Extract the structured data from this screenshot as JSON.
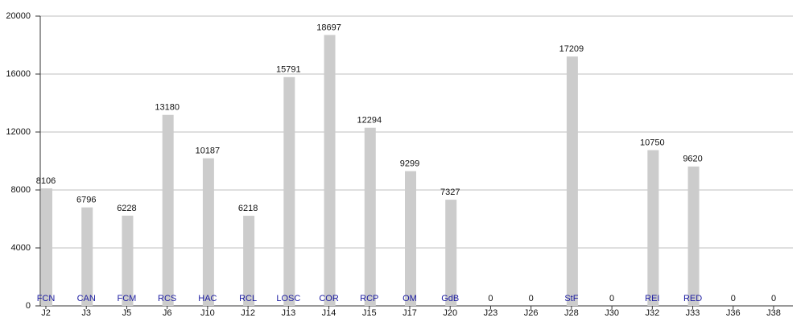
{
  "chart_data": {
    "type": "bar",
    "categories": [
      "J2",
      "J3",
      "J5",
      "J6",
      "J10",
      "J12",
      "J13",
      "J14",
      "J15",
      "J17",
      "J20",
      "J23",
      "J26",
      "J28",
      "J30",
      "J32",
      "J33",
      "J36",
      "J38"
    ],
    "values": [
      8106,
      6796,
      6228,
      13180,
      10187,
      6218,
      15791,
      18697,
      12294,
      9299,
      7327,
      0,
      0,
      17209,
      0,
      10750,
      9620,
      0,
      0
    ],
    "bar_labels": [
      "FCN",
      "CAN",
      "FCM",
      "RCS",
      "HAC",
      "RCL",
      "LOSC",
      "COR",
      "RCP",
      "OM",
      "GdB",
      null,
      null,
      "StF",
      null,
      "REI",
      "RED",
      null,
      null
    ],
    "color": "#cccccc",
    "bar_label_color": "#1a1aa0",
    "ylim": [
      0,
      20000
    ],
    "yticks": [
      0,
      4000,
      8000,
      12000,
      16000,
      20000
    ],
    "grid": true
  }
}
